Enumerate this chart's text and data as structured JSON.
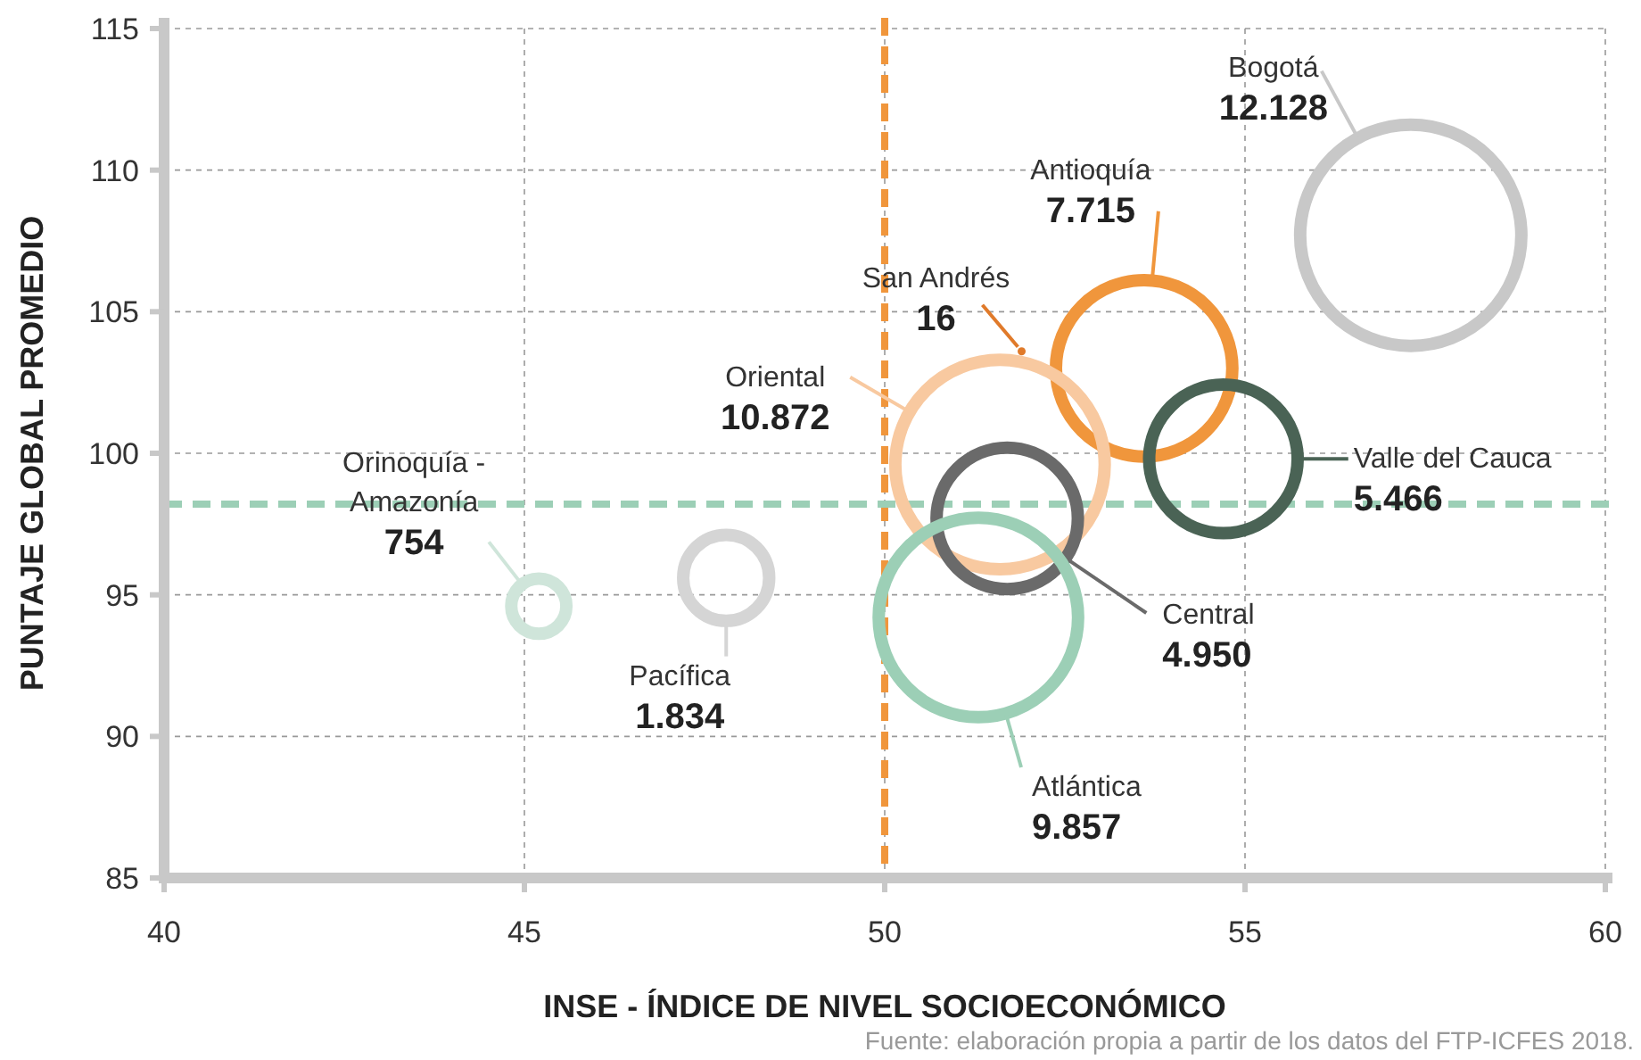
{
  "chart_data": {
    "type": "bubble",
    "xlabel": "INSE - ÍNDICE DE NIVEL SOCIOECONÓMICO",
    "ylabel": "PUNTAJE GLOBAL PROMEDIO",
    "xlim": [
      40,
      60
    ],
    "xticks": [
      40,
      45,
      50,
      55,
      60
    ],
    "ylim": [
      85,
      115
    ],
    "yticks": [
      85,
      90,
      95,
      100,
      105,
      110,
      115
    ],
    "grid": true,
    "series": [
      {
        "name": "Bogotá",
        "color": "#c8c8c8",
        "x": [
          57.3
        ],
        "values": [
          107.7
        ],
        "sizes": [
          12128
        ],
        "value_labels": [
          "12.128"
        ]
      },
      {
        "name": "Antioquía",
        "color": "#f0963c",
        "x": [
          53.6
        ],
        "values": [
          103
        ],
        "sizes": [
          7715
        ],
        "value_labels": [
          "7.715"
        ]
      },
      {
        "name": "San Andrés",
        "color": "#e07a2a",
        "x": [
          51.9
        ],
        "values": [
          103.6
        ],
        "sizes": [
          16
        ],
        "value_labels": [
          "16"
        ]
      },
      {
        "name": "Oriental",
        "color": "#f8c9a0",
        "x": [
          51.6
        ],
        "values": [
          99.6
        ],
        "sizes": [
          10872
        ],
        "value_labels": [
          "10.872"
        ]
      },
      {
        "name": "Valle del Cauca",
        "color": "#4a6355",
        "x": [
          54.7
        ],
        "values": [
          99.8
        ],
        "sizes": [
          5466
        ],
        "value_labels": [
          "5.466"
        ]
      },
      {
        "name": "Central",
        "color": "#6a6a6a",
        "x": [
          51.7
        ],
        "values": [
          97.7
        ],
        "sizes": [
          4950
        ],
        "value_labels": [
          "4.950"
        ]
      },
      {
        "name": "Atlántica",
        "color": "#9ccfb6",
        "x": [
          51.3
        ],
        "values": [
          94.2
        ],
        "sizes": [
          9857
        ],
        "value_labels": [
          "9.857"
        ]
      },
      {
        "name": "Pacífica",
        "color": "#d5d5d5",
        "x": [
          47.8
        ],
        "values": [
          95.6
        ],
        "sizes": [
          1834
        ],
        "value_labels": [
          "1.834"
        ]
      },
      {
        "name": "Orinoquía - Amazonía",
        "color": "#cfe5da",
        "x": [
          45.2
        ],
        "values": [
          94.6
        ],
        "sizes": [
          754
        ],
        "value_labels": [
          "754"
        ]
      }
    ],
    "ref_lines": [
      {
        "axis": "x",
        "value": 50,
        "color": "#f0963c",
        "line_style": "dashed"
      },
      {
        "axis": "y",
        "value": 98.2,
        "color": "#9ccfb6",
        "line_style": "dashed"
      }
    ],
    "annotations": [
      "Fuente: elaboración propia a partir de los datos del FTP-ICFES 2018."
    ]
  }
}
